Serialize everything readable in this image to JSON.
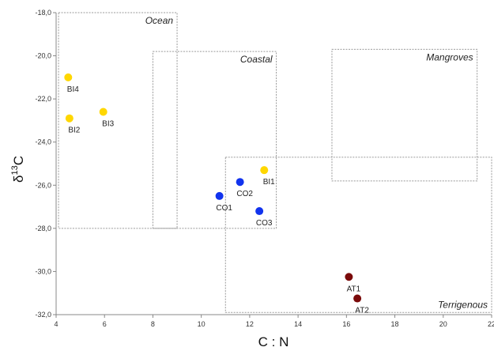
{
  "chart_data": {
    "type": "scatter",
    "title": "",
    "xlabel": "C : N",
    "ylabel_prefix": "δ",
    "ylabel_sup": "13",
    "ylabel_suffix": "C",
    "xlim": [
      4,
      22
    ],
    "ylim": [
      -32,
      -18
    ],
    "x_ticks": [
      4,
      6,
      8,
      10,
      12,
      14,
      16,
      18,
      20,
      22
    ],
    "x_tick_labels": [
      "4",
      "6",
      "8",
      "10",
      "12",
      "14",
      "16",
      "18",
      "20",
      "22"
    ],
    "y_ticks": [
      -18,
      -20,
      -22,
      -24,
      -26,
      -28,
      -30,
      -32
    ],
    "y_tick_labels": [
      "-18,0",
      "-20,0",
      "-22,0",
      "-24,0",
      "-26,0",
      "-28,0",
      "-30,0",
      "-32,0"
    ],
    "grid": false,
    "regions": [
      {
        "label": "Ocean",
        "x": [
          4.1,
          9.0
        ],
        "y": [
          -28.0,
          -18.0
        ]
      },
      {
        "label": "Coastal",
        "x": [
          8.0,
          13.1
        ],
        "y": [
          -28.0,
          -19.8
        ]
      },
      {
        "label": "Mangroves",
        "x": [
          15.4,
          21.4
        ],
        "y": [
          -25.8,
          -19.7
        ]
      },
      {
        "label": "Terrigenous",
        "x": [
          11.0,
          22.0
        ],
        "y": [
          -31.9,
          -24.7
        ]
      }
    ],
    "points": [
      {
        "label": "BI4",
        "x": 4.5,
        "y": -21.0,
        "color": "#FFD700",
        "label_pos": "below"
      },
      {
        "label": "BI2",
        "x": 4.55,
        "y": -22.9,
        "color": "#FFD700",
        "label_pos": "below"
      },
      {
        "label": "BI3",
        "x": 5.95,
        "y": -22.6,
        "color": "#FFD700",
        "label_pos": "below"
      },
      {
        "label": "BI1",
        "x": 12.6,
        "y": -25.3,
        "color": "#FFD700",
        "label_pos": "below"
      },
      {
        "label": "CO1",
        "x": 10.75,
        "y": -26.5,
        "color": "#1133EE",
        "label_pos": "below"
      },
      {
        "label": "CO2",
        "x": 11.6,
        "y": -25.85,
        "color": "#1133EE",
        "label_pos": "below"
      },
      {
        "label": "CO3",
        "x": 12.4,
        "y": -27.2,
        "color": "#1133EE",
        "label_pos": "below"
      },
      {
        "label": "AT1",
        "x": 16.1,
        "y": -30.25,
        "color": "#7A0A0A",
        "label_pos": "below"
      },
      {
        "label": "AT2",
        "x": 16.45,
        "y": -31.25,
        "color": "#7A0A0A",
        "label_pos": "below"
      }
    ]
  }
}
